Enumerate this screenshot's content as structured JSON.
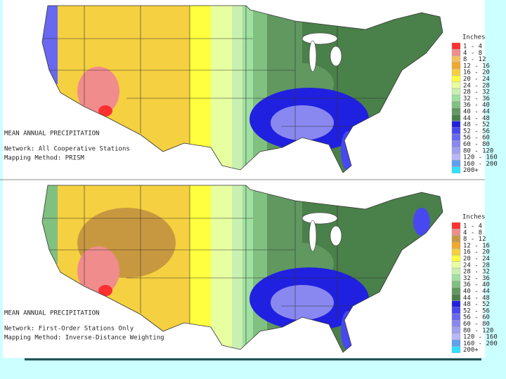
{
  "maps": [
    {
      "title": "MEAN ANNUAL PRECIPITATION",
      "network": "Network: All Cooperative Stations",
      "method": "Mapping Method: PRISM",
      "legend": {
        "title": "Inches",
        "items": [
          {
            "label": "1 - 4",
            "color": "#ff3030"
          },
          {
            "label": "4 - 8",
            "color": "#f08c8c"
          },
          {
            "label": "8 - 12",
            "color": "#f5c060"
          },
          {
            "label": "12 - 16",
            "color": "#f0a830"
          },
          {
            "label": "16 - 20",
            "color": "#f5d040"
          },
          {
            "label": "20 - 24",
            "color": "#ffff40"
          },
          {
            "label": "24 - 28",
            "color": "#e8ffa0"
          },
          {
            "label": "28 - 32",
            "color": "#c8f0b0"
          },
          {
            "label": "32 - 36",
            "color": "#a0e0a0"
          },
          {
            "label": "36 - 40",
            "color": "#80c080"
          },
          {
            "label": "40 - 44",
            "color": "#609860"
          },
          {
            "label": "44 - 48",
            "color": "#4a804a"
          },
          {
            "label": "48 - 52",
            "color": "#2020e0"
          },
          {
            "label": "52 - 56",
            "color": "#4848f0"
          },
          {
            "label": "56 - 60",
            "color": "#6868f0"
          },
          {
            "label": "60 - 80",
            "color": "#8888f0"
          },
          {
            "label": "80 - 120",
            "color": "#a0a0f0"
          },
          {
            "label": "120 - 160",
            "color": "#b8b8f8"
          },
          {
            "label": "160 - 200",
            "color": "#60a0f0"
          },
          {
            "label": "200+",
            "color": "#30e0ff"
          }
        ]
      }
    },
    {
      "title": "MEAN ANNUAL PRECIPITATION",
      "network": "Network: First-Order Stations Only",
      "method": "Mapping Method: Inverse-Distance Weighting",
      "legend": {
        "title": "Inches",
        "items": [
          {
            "label": "1 - 4",
            "color": "#ff3030"
          },
          {
            "label": "4 - 8",
            "color": "#f08c8c"
          },
          {
            "label": "8 - 12",
            "color": "#c89840"
          },
          {
            "label": "12 - 16",
            "color": "#f0a830"
          },
          {
            "label": "16 - 20",
            "color": "#f5d040"
          },
          {
            "label": "20 - 24",
            "color": "#ffff40"
          },
          {
            "label": "24 - 28",
            "color": "#e8ffa0"
          },
          {
            "label": "28 - 32",
            "color": "#c8f0b0"
          },
          {
            "label": "32 - 36",
            "color": "#a0e0a0"
          },
          {
            "label": "36 - 40",
            "color": "#80c080"
          },
          {
            "label": "40 - 44",
            "color": "#609860"
          },
          {
            "label": "44 - 48",
            "color": "#4a804a"
          },
          {
            "label": "48 - 52",
            "color": "#2020e0"
          },
          {
            "label": "52 - 56",
            "color": "#4848f0"
          },
          {
            "label": "56 - 60",
            "color": "#6868f0"
          },
          {
            "label": "60 - 80",
            "color": "#8888f0"
          },
          {
            "label": "80 - 120",
            "color": "#a0a0f0"
          },
          {
            "label": "120 - 160",
            "color": "#b8b8f8"
          },
          {
            "label": "160 - 200",
            "color": "#60a0f0"
          },
          {
            "label": "200+",
            "color": "#30e0ff"
          }
        ]
      }
    }
  ]
}
